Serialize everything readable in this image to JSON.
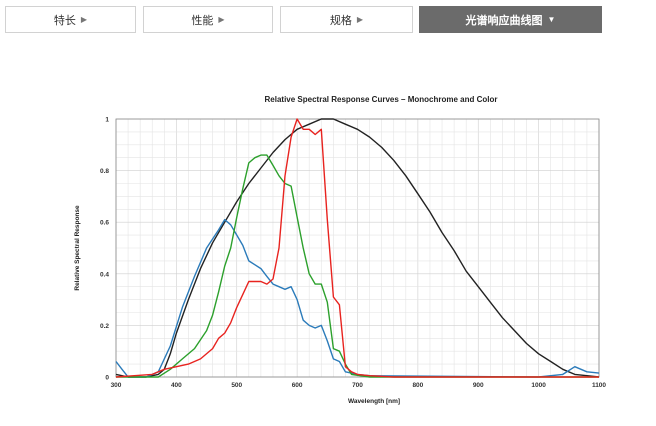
{
  "tabs": [
    {
      "label": "特长",
      "arrow": "▶",
      "active": false
    },
    {
      "label": "性能",
      "arrow": "▶",
      "active": false
    },
    {
      "label": "规格",
      "arrow": "▶",
      "active": false
    },
    {
      "label": "光谱响应曲线图",
      "arrow": "▼",
      "active": true
    }
  ],
  "colors": {
    "mono": "#222222",
    "blue": "#2b7bba",
    "green": "#2ca02c",
    "red": "#e8231f",
    "active_tab": "#6b6b6b"
  },
  "chart_data": {
    "type": "line",
    "title": "Relative Spectral Response Curves – Monochrome and Color",
    "xlabel": "Wavelength [nm]",
    "ylabel": "Relative Spectral Response",
    "xlim": [
      300,
      1100
    ],
    "ylim": [
      0,
      1
    ],
    "xticks": [
      "300",
      "400",
      "500",
      "600",
      "700",
      "800",
      "900",
      "1000",
      "1100"
    ],
    "yticks": [
      "0",
      "0.2",
      "0.4",
      "0.6",
      "0.8",
      "1"
    ],
    "grid": true,
    "series": [
      {
        "color": "mono",
        "points": [
          [
            300,
            0.01
          ],
          [
            320,
            0
          ],
          [
            350,
            0
          ],
          [
            370,
            0.01
          ],
          [
            380,
            0.03
          ],
          [
            390,
            0.09
          ],
          [
            400,
            0.17
          ],
          [
            420,
            0.3
          ],
          [
            440,
            0.42
          ],
          [
            460,
            0.52
          ],
          [
            480,
            0.6
          ],
          [
            500,
            0.68
          ],
          [
            520,
            0.75
          ],
          [
            540,
            0.81
          ],
          [
            560,
            0.87
          ],
          [
            580,
            0.92
          ],
          [
            600,
            0.96
          ],
          [
            620,
            0.98
          ],
          [
            640,
            1.0
          ],
          [
            660,
            1.0
          ],
          [
            680,
            0.98
          ],
          [
            700,
            0.96
          ],
          [
            720,
            0.93
          ],
          [
            740,
            0.89
          ],
          [
            760,
            0.84
          ],
          [
            780,
            0.78
          ],
          [
            800,
            0.71
          ],
          [
            820,
            0.64
          ],
          [
            840,
            0.56
          ],
          [
            860,
            0.49
          ],
          [
            880,
            0.41
          ],
          [
            900,
            0.35
          ],
          [
            920,
            0.29
          ],
          [
            940,
            0.23
          ],
          [
            960,
            0.18
          ],
          [
            980,
            0.13
          ],
          [
            1000,
            0.09
          ],
          [
            1020,
            0.06
          ],
          [
            1040,
            0.03
          ],
          [
            1060,
            0.01
          ],
          [
            1080,
            0.005
          ],
          [
            1100,
            0
          ]
        ]
      },
      {
        "color": "blue",
        "points": [
          [
            300,
            0.06
          ],
          [
            310,
            0.03
          ],
          [
            320,
            0
          ],
          [
            350,
            0
          ],
          [
            370,
            0.02
          ],
          [
            390,
            0.12
          ],
          [
            410,
            0.27
          ],
          [
            430,
            0.39
          ],
          [
            450,
            0.5
          ],
          [
            470,
            0.57
          ],
          [
            480,
            0.61
          ],
          [
            490,
            0.59
          ],
          [
            500,
            0.55
          ],
          [
            510,
            0.51
          ],
          [
            520,
            0.45
          ],
          [
            540,
            0.42
          ],
          [
            550,
            0.39
          ],
          [
            560,
            0.36
          ],
          [
            570,
            0.35
          ],
          [
            580,
            0.34
          ],
          [
            590,
            0.35
          ],
          [
            600,
            0.3
          ],
          [
            610,
            0.22
          ],
          [
            620,
            0.2
          ],
          [
            630,
            0.19
          ],
          [
            640,
            0.2
          ],
          [
            650,
            0.14
          ],
          [
            660,
            0.07
          ],
          [
            670,
            0.06
          ],
          [
            680,
            0.02
          ],
          [
            700,
            0.01
          ],
          [
            720,
            0.005
          ],
          [
            1000,
            0
          ],
          [
            1040,
            0.01
          ],
          [
            1060,
            0.04
          ],
          [
            1080,
            0.02
          ],
          [
            1100,
            0.015
          ]
        ]
      },
      {
        "color": "green",
        "points": [
          [
            300,
            0
          ],
          [
            370,
            0
          ],
          [
            390,
            0.03
          ],
          [
            410,
            0.07
          ],
          [
            430,
            0.11
          ],
          [
            450,
            0.18
          ],
          [
            460,
            0.24
          ],
          [
            470,
            0.33
          ],
          [
            480,
            0.43
          ],
          [
            490,
            0.5
          ],
          [
            500,
            0.62
          ],
          [
            510,
            0.73
          ],
          [
            520,
            0.83
          ],
          [
            530,
            0.85
          ],
          [
            540,
            0.86
          ],
          [
            550,
            0.86
          ],
          [
            560,
            0.82
          ],
          [
            570,
            0.78
          ],
          [
            580,
            0.75
          ],
          [
            590,
            0.74
          ],
          [
            600,
            0.62
          ],
          [
            610,
            0.5
          ],
          [
            620,
            0.4
          ],
          [
            630,
            0.36
          ],
          [
            640,
            0.36
          ],
          [
            650,
            0.29
          ],
          [
            660,
            0.11
          ],
          [
            670,
            0.1
          ],
          [
            680,
            0.05
          ],
          [
            690,
            0.01
          ],
          [
            720,
            0
          ],
          [
            1100,
            0
          ]
        ]
      },
      {
        "color": "red",
        "points": [
          [
            300,
            0
          ],
          [
            360,
            0.01
          ],
          [
            380,
            0.03
          ],
          [
            400,
            0.04
          ],
          [
            420,
            0.05
          ],
          [
            440,
            0.07
          ],
          [
            460,
            0.11
          ],
          [
            470,
            0.15
          ],
          [
            480,
            0.17
          ],
          [
            490,
            0.21
          ],
          [
            500,
            0.27
          ],
          [
            510,
            0.32
          ],
          [
            520,
            0.37
          ],
          [
            530,
            0.37
          ],
          [
            540,
            0.37
          ],
          [
            550,
            0.36
          ],
          [
            560,
            0.38
          ],
          [
            570,
            0.5
          ],
          [
            580,
            0.78
          ],
          [
            590,
            0.93
          ],
          [
            600,
            1.0
          ],
          [
            610,
            0.96
          ],
          [
            620,
            0.96
          ],
          [
            630,
            0.94
          ],
          [
            640,
            0.96
          ],
          [
            650,
            0.61
          ],
          [
            660,
            0.31
          ],
          [
            670,
            0.28
          ],
          [
            680,
            0.04
          ],
          [
            690,
            0.02
          ],
          [
            700,
            0.01
          ],
          [
            720,
            0.005
          ],
          [
            760,
            0
          ],
          [
            1100,
            0
          ]
        ]
      }
    ]
  }
}
